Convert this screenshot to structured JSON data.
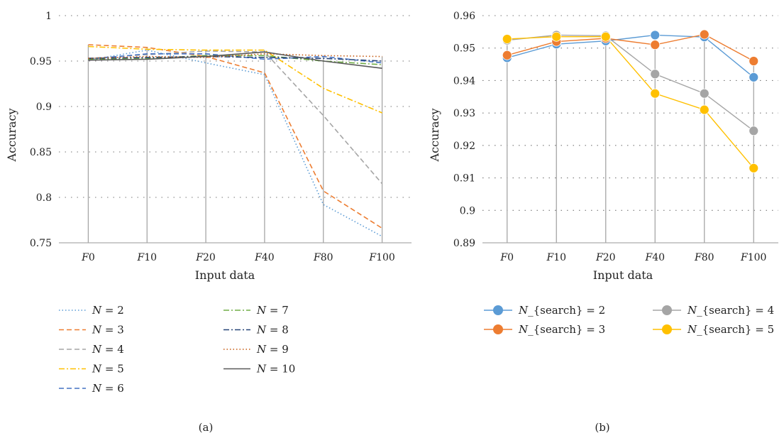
{
  "charts": [
    {
      "id": "a",
      "panel_label": "(a)",
      "xlabel": "Input data",
      "ylabel": "Accuracy",
      "categories": [
        "F0",
        "F10",
        "F20",
        "F40",
        "F80",
        "F100"
      ],
      "yticks": [
        "0.75",
        "0.8",
        "0.85",
        "0.9",
        "0.95",
        "1"
      ],
      "legend": [
        {
          "label": "N = 2",
          "color": "#5b9bd5",
          "dash": "dot"
        },
        {
          "label": "N = 3",
          "color": "#ed7d31",
          "dash": "dash"
        },
        {
          "label": "N = 4",
          "color": "#a5a5a5",
          "dash": "dash"
        },
        {
          "label": "N = 5",
          "color": "#ffc000",
          "dash": "dashdot"
        },
        {
          "label": "N = 6",
          "color": "#4472c4",
          "dash": "dash"
        },
        {
          "label": "N = 7",
          "color": "#70ad47",
          "dash": "dashdot"
        },
        {
          "label": "N = 8",
          "color": "#264478",
          "dash": "dashdot"
        },
        {
          "label": "N = 9",
          "color": "#c55a11",
          "dash": "dot"
        },
        {
          "label": "N = 10",
          "color": "#595959",
          "dash": "solid"
        }
      ]
    },
    {
      "id": "b",
      "panel_label": "(b)",
      "xlabel": "Input data",
      "ylabel": "Accuracy",
      "categories": [
        "F0",
        "F10",
        "F20",
        "F40",
        "F80",
        "F100"
      ],
      "yticks": [
        "0.89",
        "0.9",
        "0.91",
        "0.92",
        "0.93",
        "0.94",
        "0.95",
        "0.96"
      ],
      "legend": [
        {
          "label": "N_{search} = 2",
          "color": "#5b9bd5"
        },
        {
          "label": "N_{search} = 3",
          "color": "#ed7d31"
        },
        {
          "label": "N_{search} = 4",
          "color": "#a5a5a5"
        },
        {
          "label": "N_{search} = 5",
          "color": "#ffc000"
        }
      ]
    }
  ],
  "chart_data": [
    {
      "type": "line",
      "x": [
        "F0",
        "F10",
        "F20",
        "F40",
        "F80",
        "F100"
      ],
      "ylim": [
        0.75,
        1
      ],
      "grid": true,
      "legend_position": "bottom",
      "series": [
        {
          "name": "N = 2",
          "values": [
            0.951,
            0.962,
            0.948,
            0.935,
            0.792,
            0.757
          ]
        },
        {
          "name": "N = 3",
          "values": [
            0.968,
            0.965,
            0.955,
            0.937,
            0.807,
            0.766
          ]
        },
        {
          "name": "N = 4",
          "values": [
            0.953,
            0.957,
            0.961,
            0.96,
            0.89,
            0.815
          ]
        },
        {
          "name": "N = 5",
          "values": [
            0.966,
            0.963,
            0.962,
            0.962,
            0.92,
            0.893
          ]
        },
        {
          "name": "N = 6",
          "values": [
            0.952,
            0.958,
            0.958,
            0.952,
            0.955,
            0.948
          ]
        },
        {
          "name": "N = 7",
          "values": [
            0.952,
            0.953,
            0.956,
            0.956,
            0.95,
            0.946
          ]
        },
        {
          "name": "N = 8",
          "values": [
            0.953,
            0.954,
            0.955,
            0.954,
            0.953,
            0.95
          ]
        },
        {
          "name": "N = 9",
          "values": [
            0.953,
            0.955,
            0.954,
            0.958,
            0.956,
            0.955
          ]
        },
        {
          "name": "N = 10",
          "values": [
            0.951,
            0.952,
            0.955,
            0.96,
            0.95,
            0.942
          ]
        }
      ]
    },
    {
      "type": "line",
      "x": [
        "F0",
        "F10",
        "F20",
        "F40",
        "F80",
        "F100"
      ],
      "ylim": [
        0.89,
        0.96
      ],
      "grid": true,
      "legend_position": "bottom",
      "series": [
        {
          "name": "N_{search} = 2",
          "values": [
            0.947,
            0.9512,
            0.9522,
            0.954,
            0.9534,
            0.941
          ]
        },
        {
          "name": "N_{search} = 3",
          "values": [
            0.9478,
            0.952,
            0.953,
            0.951,
            0.9542,
            0.946
          ]
        },
        {
          "name": "N_{search} = 4",
          "values": [
            0.9524,
            0.954,
            0.9538,
            0.942,
            0.936,
            0.9245
          ]
        },
        {
          "name": "N_{search} = 5",
          "values": [
            0.9528,
            0.9535,
            0.9535,
            0.936,
            0.931,
            0.913
          ]
        }
      ]
    }
  ]
}
